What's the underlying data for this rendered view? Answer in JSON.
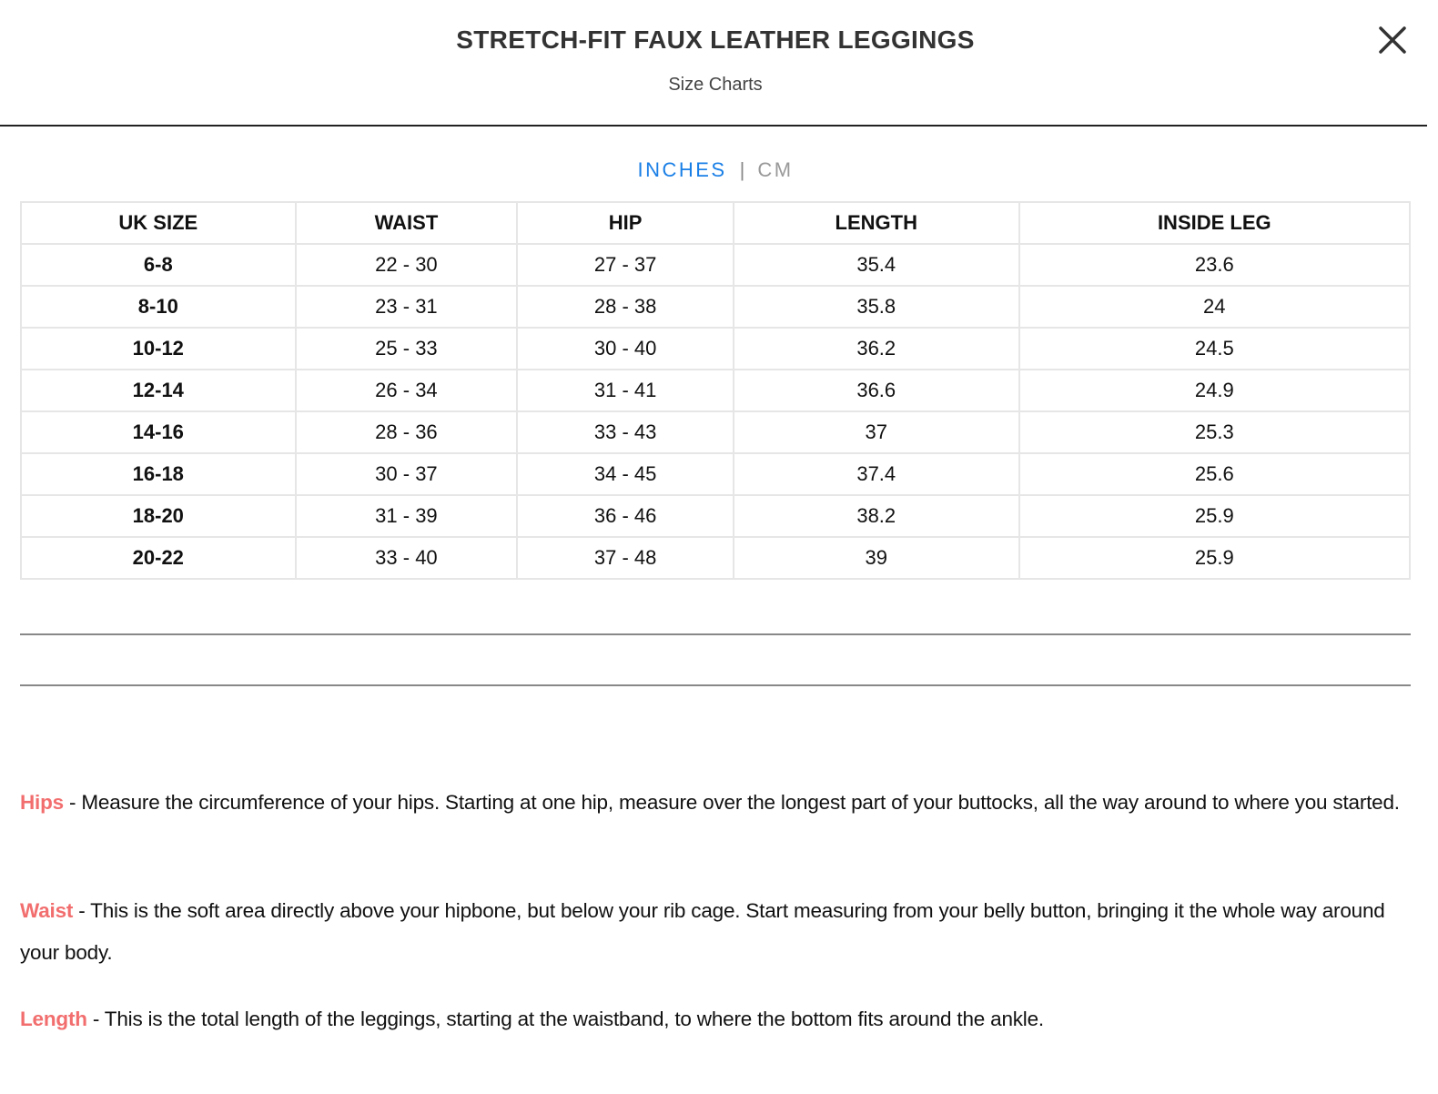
{
  "header": {
    "title": "STRETCH-FIT FAUX LEATHER LEGGINGS",
    "subtitle": "Size Charts",
    "close_icon": "close-icon"
  },
  "units": {
    "inches": "INCHES",
    "separator": "|",
    "cm": "CM",
    "active": "INCHES",
    "active_color": "#1a7fe6"
  },
  "table": {
    "headers": [
      "UK SIZE",
      "WAIST",
      "HIP",
      "LENGTH",
      "INSIDE LEG"
    ],
    "rows": [
      [
        "6-8",
        "22 - 30",
        "27 - 37",
        "35.4",
        "23.6"
      ],
      [
        "8-10",
        "23 - 31",
        "28 - 38",
        "35.8",
        "24"
      ],
      [
        "10-12",
        "25 - 33",
        "30 - 40",
        "36.2",
        "24.5"
      ],
      [
        "12-14",
        "26 - 34",
        "31 - 41",
        "36.6",
        "24.9"
      ],
      [
        "14-16",
        "28 - 36",
        "33 - 43",
        "37",
        "25.3"
      ],
      [
        "16-18",
        "30 - 37",
        "34 - 45",
        "37.4",
        "25.6"
      ],
      [
        "18-20",
        "31 - 39",
        "36 - 46",
        "38.2",
        "25.9"
      ],
      [
        "20-22",
        "33 - 40",
        "37 - 48",
        "39",
        "25.9"
      ]
    ]
  },
  "guide": [
    {
      "term": "Hips",
      "text": " - Measure the circumference of your hips. Starting at one hip, measure over the longest part of your buttocks, all the way around to where you started."
    },
    {
      "term": "Waist",
      "text": " - This is the soft area directly above your hipbone, but below your rib cage. Start measuring from your belly button, bringing it the whole way around your body."
    },
    {
      "term": "Length",
      "text": " - This is the total length of the leggings, starting at the waistband, to where the bottom fits around the ankle."
    }
  ],
  "colors": {
    "term": "#f26e6e",
    "accent": "#1a7fe6"
  }
}
